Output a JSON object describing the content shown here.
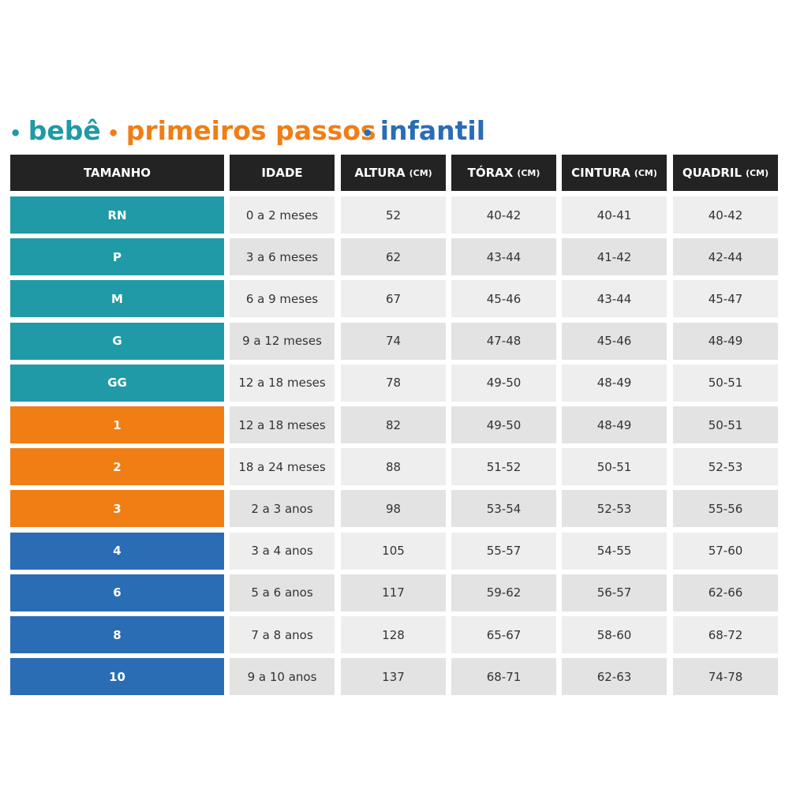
{
  "header": {
    "columns": [
      {
        "label": "TAMANHO"
      },
      {
        "label": "IDADE"
      },
      {
        "label": "ALTURA",
        "unit": "(CM)"
      },
      {
        "label": "TÓRAX",
        "unit": "(CM)"
      },
      {
        "label": "CINTURA",
        "unit": "(CM)"
      },
      {
        "label": "QUADRIL",
        "unit": "(CM)"
      }
    ]
  },
  "groups": [
    {
      "name": "bebê",
      "color": "#1f9aa6",
      "rows": [
        [
          "RN",
          "0 a 2 meses",
          52,
          "40-42",
          "40-41",
          "40-42"
        ],
        [
          "P",
          "3 a 6 meses",
          62,
          "43-44",
          "41-42",
          "42-44"
        ],
        [
          "M",
          "6 a 9 meses",
          67,
          "45-46",
          "43-44",
          "45-47"
        ],
        [
          "G",
          "9 a 12 meses",
          74,
          "47-48",
          "45-46",
          "48-49"
        ],
        [
          "GG",
          "12 a 18 meses",
          78,
          "49-50",
          "48-49",
          "50-51"
        ]
      ]
    },
    {
      "name": "primeiros passos",
      "color": "#f07e14",
      "rows": [
        [
          "1",
          "12 a 18 meses",
          82,
          "49-50",
          "48-49",
          "50-51"
        ],
        [
          "2",
          "18 a 24 meses",
          88,
          "51-52",
          "50-51",
          "52-53"
        ],
        [
          "3",
          "2 a 3 anos",
          98,
          "53-54",
          "52-53",
          "55-56"
        ]
      ]
    },
    {
      "name": "infantil",
      "color": "#2a6db5",
      "rows": [
        [
          "4",
          "3 a 4 anos",
          105,
          "55-57",
          "54-55",
          "57-60"
        ],
        [
          "6",
          "5 a 6 anos",
          117,
          "59-62",
          "56-57",
          "62-66"
        ],
        [
          "8",
          "7 a 8 anos",
          128,
          "65-67",
          "58-60",
          "68-72"
        ],
        [
          "10",
          "9 a 10 anos",
          137,
          "68-71",
          "62-63",
          "74-78"
        ]
      ]
    }
  ]
}
